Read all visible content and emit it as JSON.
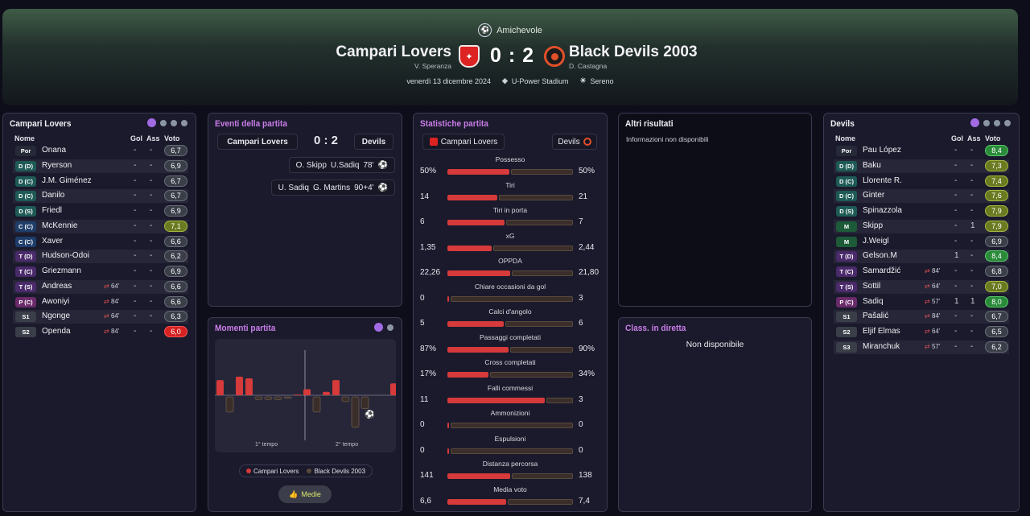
{
  "header": {
    "competition": "Amichevole",
    "home_team": "Campari Lovers",
    "home_coach": "V. Speranza",
    "away_team": "Black Devils 2003",
    "away_coach": "D. Castagna",
    "score": "0 : 2",
    "date": "venerdì 13 dicembre 2024",
    "stadium": "U-Power Stadium",
    "weather": "Sereno"
  },
  "colors": {
    "accent": "#a36be3",
    "home": "#d63a3a",
    "away": "#5a4a3e",
    "title": "#c97de8"
  },
  "lineup_columns": {
    "name": "Nome",
    "goals": "Gol",
    "assists": "Ass",
    "rating": "Voto"
  },
  "home_lineup": {
    "title": "Campari Lovers",
    "players": [
      {
        "pos": "Por",
        "name": "Onana",
        "sub": "",
        "g": "-",
        "a": "-",
        "r": "6,7"
      },
      {
        "pos": "D (D)",
        "name": "Ryerson",
        "sub": "",
        "g": "-",
        "a": "-",
        "r": "6,9"
      },
      {
        "pos": "D (C)",
        "name": "J.M. Giménez",
        "sub": "",
        "g": "-",
        "a": "-",
        "r": "6,7"
      },
      {
        "pos": "D (C)",
        "name": "Danilo",
        "sub": "",
        "g": "-",
        "a": "-",
        "r": "6,7"
      },
      {
        "pos": "D (S)",
        "name": "Friedl",
        "sub": "",
        "g": "-",
        "a": "-",
        "r": "6,9"
      },
      {
        "pos": "C (C)",
        "name": "McKennie",
        "sub": "",
        "g": "-",
        "a": "-",
        "r": "7,1"
      },
      {
        "pos": "C (C)",
        "name": "Xaver",
        "sub": "",
        "g": "-",
        "a": "-",
        "r": "6,6"
      },
      {
        "pos": "T (D)",
        "name": "Hudson-Odoi",
        "sub": "",
        "g": "-",
        "a": "-",
        "r": "6,2"
      },
      {
        "pos": "T (C)",
        "name": "Griezmann",
        "sub": "",
        "g": "-",
        "a": "-",
        "r": "6,9"
      },
      {
        "pos": "T (S)",
        "name": "Andreas",
        "sub": "64'",
        "g": "-",
        "a": "-",
        "r": "6,6"
      },
      {
        "pos": "P (C)",
        "name": "Awoniyi",
        "sub": "84'",
        "g": "-",
        "a": "-",
        "r": "6,6"
      },
      {
        "pos": "S1",
        "name": "Ngonge",
        "sub": "64'",
        "g": "-",
        "a": "-",
        "r": "6,3"
      },
      {
        "pos": "S2",
        "name": "Openda",
        "sub": "84'",
        "g": "-",
        "a": "-",
        "r": "6,0"
      }
    ]
  },
  "away_lineup": {
    "title": "Devils",
    "players": [
      {
        "pos": "Por",
        "name": "Pau López",
        "sub": "",
        "g": "-",
        "a": "-",
        "r": "8,4"
      },
      {
        "pos": "D (D)",
        "name": "Baku",
        "sub": "",
        "g": "-",
        "a": "-",
        "r": "7,3"
      },
      {
        "pos": "D (C)",
        "name": "Llorente R.",
        "sub": "",
        "g": "-",
        "a": "-",
        "r": "7,4"
      },
      {
        "pos": "D (C)",
        "name": "Ginter",
        "sub": "",
        "g": "-",
        "a": "-",
        "r": "7,6"
      },
      {
        "pos": "D (S)",
        "name": "Spinazzola",
        "sub": "",
        "g": "-",
        "a": "-",
        "r": "7,9"
      },
      {
        "pos": "M",
        "name": "Skipp",
        "sub": "",
        "g": "-",
        "a": "1",
        "r": "7,9"
      },
      {
        "pos": "M",
        "name": "J.Weigl",
        "sub": "",
        "g": "-",
        "a": "-",
        "r": "6,9"
      },
      {
        "pos": "T (D)",
        "name": "Gelson.M",
        "sub": "",
        "g": "1",
        "a": "-",
        "r": "8,4"
      },
      {
        "pos": "T (C)",
        "name": "Samardžić",
        "sub": "84'",
        "g": "-",
        "a": "-",
        "r": "6,8"
      },
      {
        "pos": "T (S)",
        "name": "Sottil",
        "sub": "64'",
        "g": "-",
        "a": "-",
        "r": "7,0"
      },
      {
        "pos": "P (C)",
        "name": "Sadiq",
        "sub": "57'",
        "g": "1",
        "a": "1",
        "r": "8,0"
      },
      {
        "pos": "S1",
        "name": "Pašalić",
        "sub": "84'",
        "g": "-",
        "a": "-",
        "r": "6,7"
      },
      {
        "pos": "S2",
        "name": "Eljif Elmas",
        "sub": "64'",
        "g": "-",
        "a": "-",
        "r": "6,5"
      },
      {
        "pos": "S3",
        "name": "Miranchuk",
        "sub": "57'",
        "g": "-",
        "a": "-",
        "r": "6,2"
      }
    ]
  },
  "events": {
    "title": "Eventi della partita",
    "home": "Campari Lovers",
    "score": "0 : 2",
    "away": "Devils",
    "items": [
      {
        "scorer": "U.Sadiq",
        "assist": "O. Skipp",
        "minute": "78'"
      },
      {
        "scorer": "G. Martins",
        "assist": "U. Sadiq",
        "minute": "90+4'"
      }
    ]
  },
  "moments": {
    "title": "Momenti partita",
    "first_half": "1° tempo",
    "second_half": "2° tempo",
    "legend_home": "Campari Lovers",
    "legend_away": "Black Devils 2003",
    "button": "Medie",
    "home_bars": [
      0.45,
      0,
      0.55,
      0.5,
      0,
      0,
      0,
      0,
      0.02,
      0.18,
      0,
      0.1,
      0.45,
      0,
      0,
      0,
      0,
      0,
      0.35
    ],
    "away_bars": [
      0,
      0.45,
      0,
      0,
      0.08,
      0.08,
      0.08,
      0.04,
      0,
      0,
      0.45,
      0,
      0,
      0.14,
      0.9,
      0.35,
      0,
      0,
      0
    ]
  },
  "stats": {
    "title": "Statistiche partita",
    "home": "Campari Lovers",
    "away": "Devils",
    "items": [
      {
        "label": "Possesso",
        "home": "50%",
        "away": "50%",
        "hv": 50,
        "av": 50
      },
      {
        "label": "Tiri",
        "home": "14",
        "away": "21",
        "hv": 14,
        "av": 21
      },
      {
        "label": "Tiri in porta",
        "home": "6",
        "away": "7",
        "hv": 6,
        "av": 7
      },
      {
        "label": "xG",
        "home": "1,35",
        "away": "2,44",
        "hv": 1.35,
        "av": 2.44
      },
      {
        "label": "OPPDA",
        "home": "22,26",
        "away": "21,80",
        "hv": 22.26,
        "av": 21.8
      },
      {
        "label": "Chiare occasioni da gol",
        "home": "0",
        "away": "3",
        "hv": 0,
        "av": 3
      },
      {
        "label": "Calci d'angolo",
        "home": "5",
        "away": "6",
        "hv": 5,
        "av": 6
      },
      {
        "label": "Passaggi completati",
        "home": "87%",
        "away": "90%",
        "hv": 87,
        "av": 90
      },
      {
        "label": "Cross completati",
        "home": "17%",
        "away": "34%",
        "hv": 17,
        "av": 34
      },
      {
        "label": "Falli commessi",
        "home": "11",
        "away": "3",
        "hv": 11,
        "av": 3
      },
      {
        "label": "Ammonizioni",
        "home": "0",
        "away": "0",
        "hv": 0,
        "av": 0
      },
      {
        "label": "Espulsioni",
        "home": "0",
        "away": "0",
        "hv": 0,
        "av": 0
      },
      {
        "label": "Distanza percorsa",
        "home": "141",
        "away": "138",
        "hv": 141,
        "av": 138
      },
      {
        "label": "Media voto",
        "home": "6,6",
        "away": "7,4",
        "hv": 6.6,
        "av": 7.4
      }
    ]
  },
  "other_results": {
    "title": "Altri risultati",
    "message": "Informazioni non disponibili"
  },
  "live_table": {
    "title": "Class. in diretta",
    "message": "Non disponibile"
  }
}
